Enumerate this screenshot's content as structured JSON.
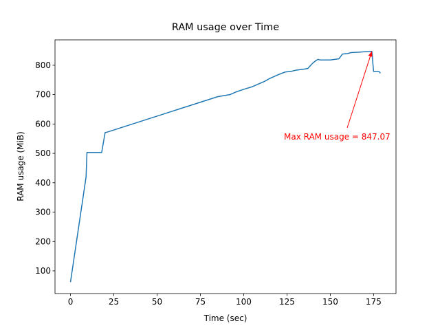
{
  "chart_data": {
    "type": "line",
    "title": "RAM usage over Time",
    "xlabel": "Time (sec)",
    "ylabel": "RAM usage (MiB)",
    "x": [
      0,
      9,
      9.5,
      18,
      20,
      21,
      85,
      92,
      96,
      100,
      105,
      110,
      112,
      115,
      120,
      124,
      128,
      130,
      135,
      137,
      140,
      142,
      143,
      144,
      150,
      155,
      157,
      160,
      162,
      165,
      170,
      174,
      175,
      178,
      179
    ],
    "series": [
      {
        "name": "RAM usage",
        "color": "#1f77b4",
        "values": [
          62,
          420,
          503,
          503,
          571,
          572,
          693,
          700,
          710,
          718,
          727,
          740,
          745,
          755,
          768,
          777,
          780,
          783,
          787,
          789,
          808,
          817,
          820,
          818,
          818,
          822,
          838,
          840,
          843,
          844,
          846,
          847.07,
          779,
          779,
          773
        ]
      }
    ],
    "xlim": [
      -8.95,
      187.95
    ],
    "ylim": [
      22.7,
      886.4
    ],
    "xticks": [
      0,
      25,
      50,
      75,
      100,
      125,
      150,
      175
    ],
    "yticks": [
      100,
      200,
      300,
      400,
      500,
      600,
      700,
      800
    ],
    "annotation": {
      "text": "Max RAM usage = 847.07",
      "color": "red"
    }
  }
}
